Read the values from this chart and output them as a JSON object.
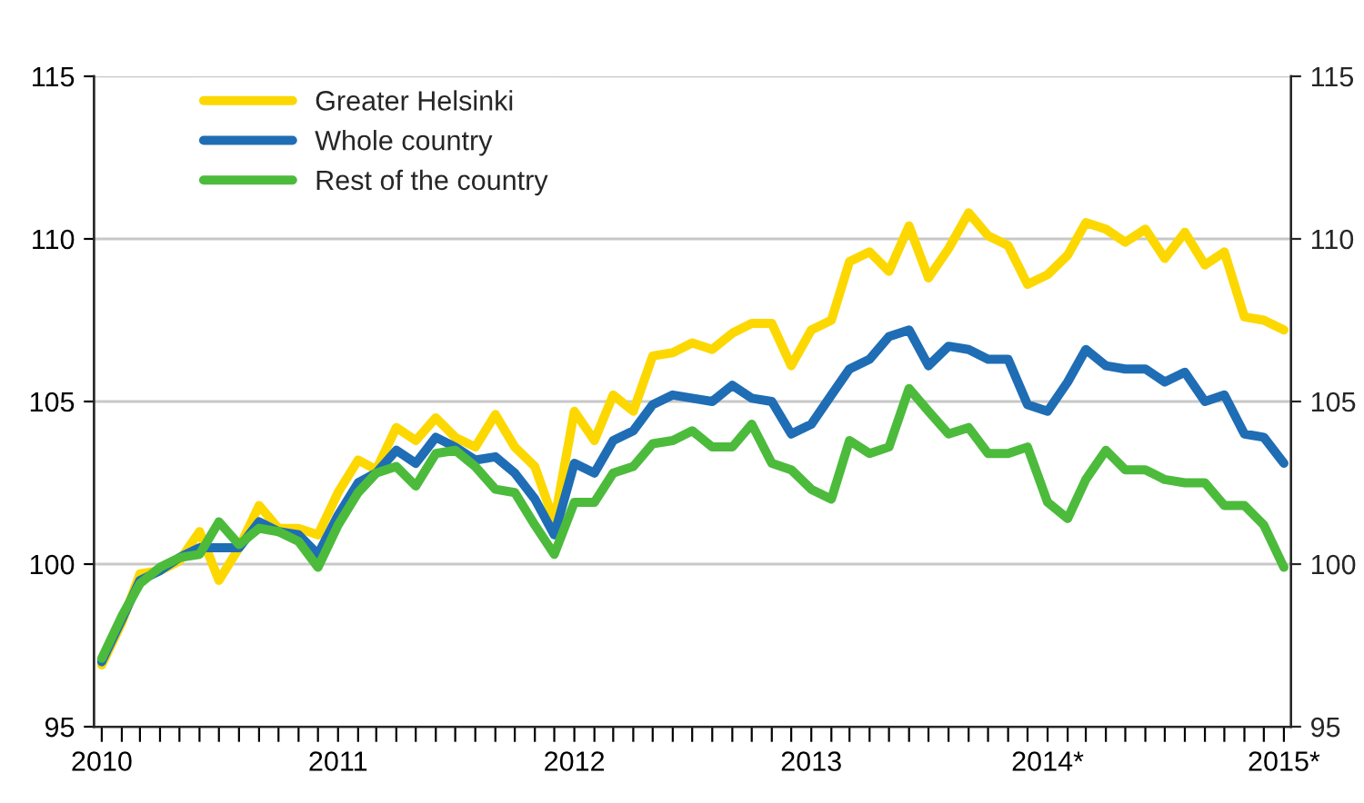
{
  "chart_data": {
    "type": "line",
    "x": [
      "2010-01",
      "2010-02",
      "2010-03",
      "2010-04",
      "2010-05",
      "2010-06",
      "2010-07",
      "2010-08",
      "2010-09",
      "2010-10",
      "2010-11",
      "2010-12",
      "2011-01",
      "2011-02",
      "2011-03",
      "2011-04",
      "2011-05",
      "2011-06",
      "2011-07",
      "2011-08",
      "2011-09",
      "2011-10",
      "2011-11",
      "2011-12",
      "2012-01",
      "2012-02",
      "2012-03",
      "2012-04",
      "2012-05",
      "2012-06",
      "2012-07",
      "2012-08",
      "2012-09",
      "2012-10",
      "2012-11",
      "2012-12",
      "2013-01",
      "2013-02",
      "2013-03",
      "2013-04",
      "2013-05",
      "2013-06",
      "2013-07",
      "2013-08",
      "2013-09",
      "2013-10",
      "2013-11",
      "2013-12",
      "2014-01",
      "2014-02",
      "2014-03",
      "2014-04",
      "2014-05",
      "2014-06",
      "2014-07",
      "2014-08",
      "2014-09",
      "2014-10",
      "2014-11",
      "2014-12",
      "2015-01"
    ],
    "series": [
      {
        "name": "Greater Helsinki",
        "color": "#fcd800",
        "values": [
          96.9,
          98.2,
          99.7,
          99.8,
          100.1,
          101.0,
          99.5,
          100.5,
          101.8,
          101.1,
          101.1,
          100.9,
          102.2,
          103.2,
          102.9,
          104.2,
          103.8,
          104.5,
          103.9,
          103.6,
          104.6,
          103.6,
          103.0,
          101.3,
          104.7,
          103.8,
          105.2,
          104.7,
          106.4,
          106.5,
          106.8,
          106.6,
          107.1,
          107.4,
          107.4,
          106.1,
          107.2,
          107.5,
          109.3,
          109.6,
          109.0,
          110.4,
          108.8,
          109.7,
          110.8,
          110.1,
          109.8,
          108.6,
          108.9,
          109.5,
          110.5,
          110.3,
          109.9,
          110.3,
          109.4,
          110.2,
          109.2,
          109.6,
          107.6,
          107.5,
          107.2
        ]
      },
      {
        "name": "Whole country",
        "color": "#1f6db4",
        "values": [
          97.0,
          98.3,
          99.5,
          99.8,
          100.2,
          100.5,
          100.5,
          100.5,
          101.3,
          101.0,
          100.9,
          100.3,
          101.5,
          102.5,
          102.8,
          103.5,
          103.1,
          103.9,
          103.6,
          103.2,
          103.3,
          102.8,
          102.0,
          100.9,
          103.1,
          102.8,
          103.8,
          104.1,
          104.9,
          105.2,
          105.1,
          105.0,
          105.5,
          105.1,
          105.0,
          104.0,
          104.3,
          105.2,
          106.0,
          106.3,
          107.0,
          107.2,
          106.1,
          106.7,
          106.6,
          106.3,
          106.3,
          104.9,
          104.7,
          105.6,
          106.6,
          106.1,
          106.0,
          106.0,
          105.6,
          105.9,
          105.0,
          105.2,
          104.0,
          103.9,
          103.1
        ]
      },
      {
        "name": "Rest of the country",
        "color": "#4cbb3c",
        "values": [
          97.1,
          98.4,
          99.4,
          99.9,
          100.2,
          100.3,
          101.3,
          100.6,
          101.1,
          101.0,
          100.7,
          99.9,
          101.2,
          102.2,
          102.8,
          103.0,
          102.4,
          103.4,
          103.5,
          103.0,
          102.3,
          102.2,
          101.2,
          100.3,
          101.9,
          101.9,
          102.8,
          103.0,
          103.7,
          103.8,
          104.1,
          103.6,
          103.6,
          104.3,
          103.1,
          102.9,
          102.3,
          102.0,
          103.8,
          103.4,
          103.6,
          105.4,
          104.7,
          104.0,
          104.2,
          103.4,
          103.4,
          103.6,
          101.9,
          101.4,
          102.6,
          103.5,
          102.9,
          102.9,
          102.6,
          102.5,
          102.5,
          101.8,
          101.8,
          101.2,
          99.9
        ]
      }
    ],
    "xlim": [
      "2009-12-20",
      "2015-01-12"
    ],
    "xticks": [
      {
        "value": "2010-01",
        "label": "2010"
      },
      {
        "value": "2010-02",
        "label": null
      },
      {
        "value": "2010-03",
        "label": null
      },
      {
        "value": "2010-04",
        "label": null
      },
      {
        "value": "2010-05",
        "label": null
      },
      {
        "value": "2010-06",
        "label": null
      },
      {
        "value": "2010-07",
        "label": null
      },
      {
        "value": "2010-08",
        "label": null
      },
      {
        "value": "2010-09",
        "label": null
      },
      {
        "value": "2010-10",
        "label": null
      },
      {
        "value": "2010-11",
        "label": null
      },
      {
        "value": "2010-12",
        "label": null
      },
      {
        "value": "2011-01",
        "label": "2011"
      },
      {
        "value": "2011-02",
        "label": null
      },
      {
        "value": "2011-03",
        "label": null
      },
      {
        "value": "2011-04",
        "label": null
      },
      {
        "value": "2011-05",
        "label": null
      },
      {
        "value": "2011-06",
        "label": null
      },
      {
        "value": "2011-07",
        "label": null
      },
      {
        "value": "2011-08",
        "label": null
      },
      {
        "value": "2011-09",
        "label": null
      },
      {
        "value": "2011-10",
        "label": null
      },
      {
        "value": "2011-11",
        "label": null
      },
      {
        "value": "2011-12",
        "label": null
      },
      {
        "value": "2012-01",
        "label": "2012"
      },
      {
        "value": "2012-02",
        "label": null
      },
      {
        "value": "2012-03",
        "label": null
      },
      {
        "value": "2012-04",
        "label": null
      },
      {
        "value": "2012-05",
        "label": null
      },
      {
        "value": "2012-06",
        "label": null
      },
      {
        "value": "2012-07",
        "label": null
      },
      {
        "value": "2012-08",
        "label": null
      },
      {
        "value": "2012-09",
        "label": null
      },
      {
        "value": "2012-10",
        "label": null
      },
      {
        "value": "2012-11",
        "label": null
      },
      {
        "value": "2012-12",
        "label": null
      },
      {
        "value": "2013-01",
        "label": "2013"
      },
      {
        "value": "2013-02",
        "label": null
      },
      {
        "value": "2013-03",
        "label": null
      },
      {
        "value": "2013-04",
        "label": null
      },
      {
        "value": "2013-05",
        "label": null
      },
      {
        "value": "2013-06",
        "label": null
      },
      {
        "value": "2013-07",
        "label": null
      },
      {
        "value": "2013-08",
        "label": null
      },
      {
        "value": "2013-09",
        "label": null
      },
      {
        "value": "2013-10",
        "label": null
      },
      {
        "value": "2013-11",
        "label": null
      },
      {
        "value": "2013-12",
        "label": null
      },
      {
        "value": "2014-01",
        "label": "2014*"
      },
      {
        "value": "2014-02",
        "label": null
      },
      {
        "value": "2014-03",
        "label": null
      },
      {
        "value": "2014-04",
        "label": null
      },
      {
        "value": "2014-05",
        "label": null
      },
      {
        "value": "2014-06",
        "label": null
      },
      {
        "value": "2014-07",
        "label": null
      },
      {
        "value": "2014-08",
        "label": null
      },
      {
        "value": "2014-09",
        "label": null
      },
      {
        "value": "2014-10",
        "label": null
      },
      {
        "value": "2014-11",
        "label": null
      },
      {
        "value": "2014-12",
        "label": null
      },
      {
        "value": "2015-01",
        "label": "2015*"
      }
    ],
    "ylim": [
      95,
      115
    ],
    "yticks": [
      95,
      100,
      105,
      110,
      115
    ],
    "y2lim": [
      95,
      115
    ],
    "y2ticks": [
      95,
      100,
      105,
      110,
      115
    ],
    "grid": "y",
    "legend": "top left",
    "marker": "none",
    "line_style": "solid"
  }
}
